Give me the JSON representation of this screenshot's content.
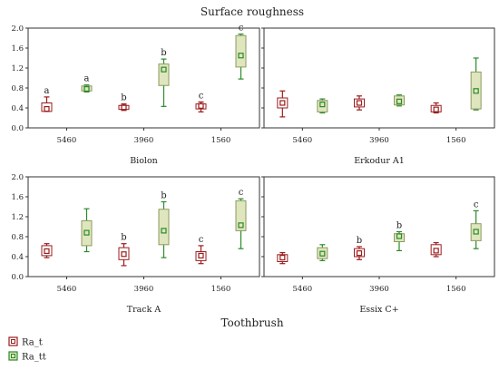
{
  "chart_data": {
    "type": "box",
    "title": "Surface roughness",
    "xlabel": "Toothbrush",
    "ylim": [
      0,
      2.0
    ],
    "yticks": [
      "0.0",
      "0.4",
      "0.8",
      "1.2",
      "1.6",
      "2.0"
    ],
    "categories": [
      "5460",
      "3960",
      "1560"
    ],
    "legend_position": "bottom-left",
    "series": [
      {
        "name": "Ra_t",
        "color": "#9b1c1c"
      },
      {
        "name": "Ra_tt",
        "color": "#2a8a2a"
      }
    ],
    "panels": [
      {
        "label": "Biolon",
        "groups": [
          {
            "Ra_t": {
              "min": 0.33,
              "q1": 0.33,
              "median": 0.38,
              "q3": 0.5,
              "max": 0.62
            },
            "Ra_tt": {
              "min": 0.72,
              "q1": 0.74,
              "median": 0.78,
              "q3": 0.84,
              "max": 0.86
            },
            "letters": [
              "a",
              "a"
            ]
          },
          {
            "Ra_t": {
              "min": 0.35,
              "q1": 0.37,
              "median": 0.41,
              "q3": 0.45,
              "max": 0.48
            },
            "Ra_tt": {
              "min": 0.43,
              "q1": 0.85,
              "median": 1.17,
              "q3": 1.28,
              "max": 1.38
            },
            "letters": [
              "b",
              "b"
            ]
          },
          {
            "Ra_t": {
              "min": 0.32,
              "q1": 0.38,
              "median": 0.44,
              "q3": 0.48,
              "max": 0.52
            },
            "Ra_tt": {
              "min": 0.98,
              "q1": 1.22,
              "median": 1.45,
              "q3": 1.85,
              "max": 1.88
            },
            "letters": [
              "c",
              "c"
            ]
          }
        ]
      },
      {
        "label": "Erkodur A1",
        "groups": [
          {
            "Ra_t": {
              "min": 0.22,
              "q1": 0.4,
              "median": 0.5,
              "q3": 0.6,
              "max": 0.74
            },
            "Ra_tt": {
              "min": 0.3,
              "q1": 0.32,
              "median": 0.47,
              "q3": 0.55,
              "max": 0.58
            },
            "letters": [
              "",
              ""
            ]
          },
          {
            "Ra_t": {
              "min": 0.36,
              "q1": 0.42,
              "median": 0.5,
              "q3": 0.58,
              "max": 0.64
            },
            "Ra_tt": {
              "min": 0.44,
              "q1": 0.46,
              "median": 0.53,
              "q3": 0.64,
              "max": 0.66
            },
            "letters": [
              "",
              ""
            ]
          },
          {
            "Ra_t": {
              "min": 0.3,
              "q1": 0.32,
              "median": 0.37,
              "q3": 0.45,
              "max": 0.5
            },
            "Ra_tt": {
              "min": 0.36,
              "q1": 0.38,
              "median": 0.74,
              "q3": 1.12,
              "max": 1.4
            },
            "letters": [
              "",
              ""
            ]
          }
        ]
      },
      {
        "label": "Track A",
        "groups": [
          {
            "Ra_t": {
              "min": 0.38,
              "q1": 0.42,
              "median": 0.51,
              "q3": 0.62,
              "max": 0.66
            },
            "Ra_tt": {
              "min": 0.5,
              "q1": 0.62,
              "median": 0.88,
              "q3": 1.12,
              "max": 1.36
            },
            "letters": [
              "",
              ""
            ]
          },
          {
            "Ra_t": {
              "min": 0.22,
              "q1": 0.34,
              "median": 0.45,
              "q3": 0.58,
              "max": 0.66
            },
            "Ra_tt": {
              "min": 0.38,
              "q1": 0.64,
              "median": 0.92,
              "q3": 1.35,
              "max": 1.5
            },
            "letters": [
              "b",
              "b"
            ]
          },
          {
            "Ra_t": {
              "min": 0.26,
              "q1": 0.32,
              "median": 0.42,
              "q3": 0.5,
              "max": 0.62
            },
            "Ra_tt": {
              "min": 0.56,
              "q1": 0.92,
              "median": 1.03,
              "q3": 1.52,
              "max": 1.56
            },
            "letters": [
              "c",
              "c"
            ]
          }
        ]
      },
      {
        "label": "Essix C+",
        "groups": [
          {
            "Ra_t": {
              "min": 0.26,
              "q1": 0.3,
              "median": 0.38,
              "q3": 0.44,
              "max": 0.48
            },
            "Ra_tt": {
              "min": 0.32,
              "q1": 0.36,
              "median": 0.46,
              "q3": 0.58,
              "max": 0.64
            },
            "letters": [
              "",
              ""
            ]
          },
          {
            "Ra_t": {
              "min": 0.34,
              "q1": 0.4,
              "median": 0.47,
              "q3": 0.56,
              "max": 0.6
            },
            "Ra_tt": {
              "min": 0.52,
              "q1": 0.7,
              "median": 0.81,
              "q3": 0.86,
              "max": 0.9
            },
            "letters": [
              "b",
              "b"
            ]
          },
          {
            "Ra_t": {
              "min": 0.4,
              "q1": 0.44,
              "median": 0.52,
              "q3": 0.64,
              "max": 0.68
            },
            "Ra_tt": {
              "min": 0.56,
              "q1": 0.72,
              "median": 0.9,
              "q3": 1.06,
              "max": 1.32
            },
            "letters": [
              "",
              "c"
            ]
          }
        ]
      }
    ]
  }
}
